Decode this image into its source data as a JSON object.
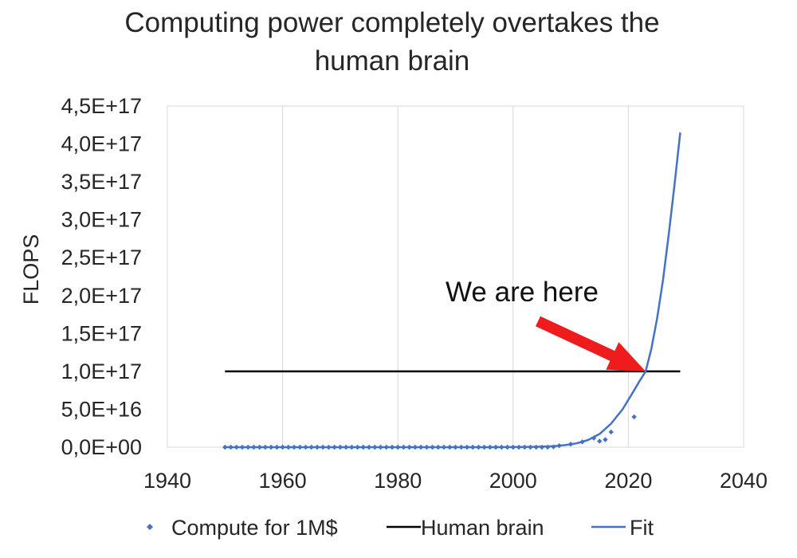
{
  "chart_data": {
    "type": "scatter",
    "title": "Computing power completely overtakes the human brain",
    "title_lines": [
      "Computing power completely overtakes the",
      "human brain"
    ],
    "xlabel": "",
    "ylabel": "FLOPS",
    "xlim": [
      1940,
      2040
    ],
    "ylim": [
      0,
      4.5e+17
    ],
    "x_ticks": [
      1940,
      1960,
      1980,
      2000,
      2020,
      2040
    ],
    "x_tick_labels": [
      "1940",
      "1960",
      "1980",
      "2000",
      "2020",
      "2040"
    ],
    "y_ticks": [
      0,
      5e+16,
      1e+17,
      1.5e+17,
      2e+17,
      2.5e+17,
      3e+17,
      3.5e+17,
      4e+17,
      4.5e+17
    ],
    "y_tick_labels": [
      "0,0E+00",
      "5,0E+16",
      "1,0E+17",
      "1,5E+17",
      "2,0E+17",
      "2,5E+17",
      "3,0E+17",
      "3,5E+17",
      "4,0E+17",
      "4,5E+17"
    ],
    "grid": {
      "vertical": true,
      "horizontal": false
    },
    "legend_position": "bottom",
    "series": [
      {
        "name": "Compute for 1M$",
        "kind": "scatter",
        "color": "#4472c4",
        "x": [
          1950,
          1951,
          1952,
          1953,
          1954,
          1955,
          1956,
          1957,
          1958,
          1959,
          1960,
          1961,
          1962,
          1963,
          1964,
          1965,
          1966,
          1967,
          1968,
          1969,
          1970,
          1971,
          1972,
          1973,
          1974,
          1975,
          1976,
          1977,
          1978,
          1979,
          1980,
          1981,
          1982,
          1983,
          1984,
          1985,
          1986,
          1987,
          1988,
          1989,
          1990,
          1991,
          1992,
          1993,
          1994,
          1995,
          1996,
          1997,
          1998,
          1999,
          2000,
          2001,
          2002,
          2003,
          2004,
          2005,
          2006,
          2007,
          2008,
          2010,
          2012,
          2014,
          2015,
          2016,
          2017,
          2021
        ],
        "y": [
          0,
          0,
          0,
          0,
          0,
          0,
          0,
          0,
          0,
          0,
          0,
          0,
          0,
          0,
          0,
          0,
          0,
          0,
          0,
          0,
          0,
          0,
          0,
          0,
          0,
          0,
          0,
          0,
          0,
          0,
          0,
          0,
          0,
          0,
          0,
          0,
          0,
          0,
          0,
          0,
          0,
          0,
          0,
          0,
          0,
          0,
          0,
          0,
          0,
          0,
          0,
          0,
          0,
          0,
          0,
          0,
          100000000000000.0,
          500000000000000.0,
          2000000000000000.0,
          4000000000000000.0,
          7000000000000000.0,
          1.2e+16,
          8000000000000000.0,
          1e+16,
          2e+16,
          4e+16
        ]
      },
      {
        "name": "Human brain",
        "kind": "line",
        "color": "#000000",
        "x": [
          1950,
          2029
        ],
        "y": [
          1e+17,
          1e+17
        ]
      },
      {
        "name": "Fit",
        "kind": "line",
        "color": "#4472c4",
        "x": [
          1950,
          1960,
          1970,
          1980,
          1990,
          1995,
          2000,
          2003,
          2005,
          2007,
          2009,
          2011,
          2013,
          2015,
          2017,
          2019,
          2021,
          2022,
          2023,
          2024,
          2025,
          2026,
          2027,
          2028,
          2029
        ],
        "y": [
          0,
          0,
          0,
          0,
          0,
          20000000000000.0,
          150000000000000.0,
          400000000000000.0,
          700000000000000.0,
          1400000000000000.0,
          2700000000000000.0,
          5000000000000000.0,
          9500000000000000.0,
          1.75e+16,
          3.1e+16,
          5e+16,
          7.5e+16,
          8.8e+16,
          1e+17,
          1.3e+17,
          1.7e+17,
          2.2e+17,
          2.8e+17,
          3.45e+17,
          4.15e+17
        ]
      }
    ],
    "annotations": [
      {
        "text": "We are here",
        "arrow_to": {
          "x": 2023,
          "y": 1e+17
        },
        "arrow_color": "#ee1c1c"
      }
    ]
  }
}
